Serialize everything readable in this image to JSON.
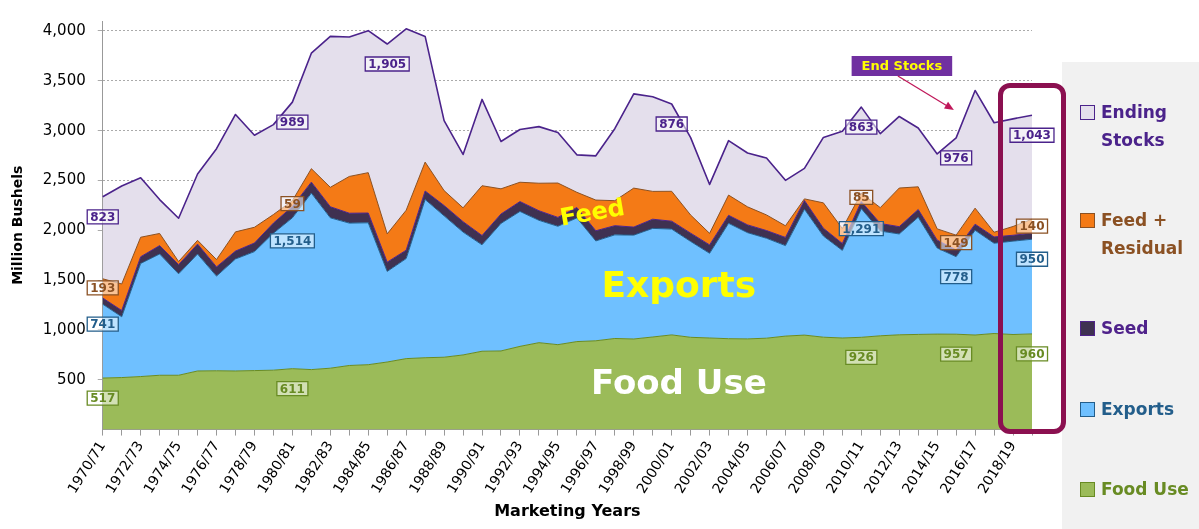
{
  "chart_data": {
    "type": "area",
    "stacked": true,
    "xlabel": "Marketing Years",
    "ylabel": "Million Bushels",
    "categories": [
      "1970/71",
      null,
      "1972/73",
      null,
      "1974/75",
      null,
      "1976/77",
      null,
      "1978/79",
      null,
      "1980/81",
      null,
      "1982/83",
      null,
      "1984/85",
      null,
      "1986/87",
      null,
      "1988/89",
      null,
      "1990/91",
      null,
      "1992/93",
      null,
      "1994/95",
      null,
      "1996/97",
      null,
      "1998/99",
      null,
      "2000/01",
      null,
      "2002/03",
      null,
      "2004/05",
      null,
      "2006/07",
      null,
      "2008/09",
      null,
      "2010/11",
      null,
      "2012/13",
      null,
      "2014/15",
      null,
      "2016/17",
      null,
      "2018/19",
      null
    ],
    "series": [
      {
        "name": "Food Use",
        "color": "#9bbb59",
        "values": [
          517,
          522,
          532,
          545,
          545,
          588,
          590,
          588,
          592,
          596,
          611,
          602,
          616,
          643,
          651,
          678,
          712,
          721,
          726,
          749,
          786,
          789,
          835,
          872,
          852,
          883,
          891,
          914,
          909,
          929,
          950,
          926,
          919,
          912,
          910,
          917,
          938,
          948,
          927,
          919,
          926,
          941,
          951,
          955,
          958,
          957,
          949,
          964,
          954,
          960
        ],
        "value_labels": [
          "517",
          null,
          null,
          null,
          null,
          null,
          null,
          null,
          null,
          null,
          "611",
          null,
          null,
          null,
          null,
          null,
          null,
          null,
          null,
          null,
          null,
          null,
          null,
          null,
          null,
          null,
          null,
          null,
          null,
          null,
          null,
          null,
          null,
          null,
          null,
          null,
          null,
          null,
          null,
          null,
          "926",
          null,
          null,
          null,
          null,
          "957",
          null,
          null,
          null,
          "960"
        ]
      },
      {
        "name": "Exports",
        "color": "#6fc0ff",
        "values": [
          741,
          610,
          1135,
          1217,
          1018,
          1173,
          950,
          1124,
          1194,
          1375,
          1514,
          1771,
          1509,
          1429,
          1424,
          909,
          1004,
          1588,
          1419,
          1233,
          1068,
          1280,
          1354,
          1228,
          1188,
          1241,
          1002,
          1040,
          1042,
          1090,
          1062,
          962,
          850,
          1158,
          1066,
          1003,
          908,
          1263,
          1015,
          879,
          1291,
          1051,
          1012,
          1176,
          864,
          778,
          1051,
          906,
          937,
          950
        ],
        "value_labels": [
          "741",
          null,
          null,
          null,
          null,
          null,
          null,
          null,
          null,
          null,
          "1,514",
          null,
          null,
          null,
          null,
          null,
          null,
          null,
          null,
          null,
          null,
          null,
          null,
          null,
          null,
          null,
          null,
          null,
          null,
          null,
          null,
          null,
          null,
          null,
          null,
          null,
          null,
          null,
          null,
          null,
          "1,291",
          null,
          null,
          null,
          null,
          "778",
          null,
          null,
          null,
          "950"
        ]
      },
      {
        "name": "Seed",
        "color": "#3f3151",
        "values": [
          62,
          63,
          67,
          84,
          92,
          100,
          92,
          79,
          86,
          101,
          113,
          110,
          111,
          99,
          98,
          93,
          84,
          85,
          103,
          104,
          93,
          94,
          99,
          96,
          89,
          104,
          102,
          92,
          81,
          92,
          79,
          83,
          84,
          80,
          78,
          77,
          82,
          88,
          78,
          69,
          71,
          76,
          73,
          77,
          79,
          67,
          61,
          63,
          59,
          61
        ]
      },
      {
        "name": "Feed + Residual",
        "color": "#f47a16",
        "values": [
          193,
          266,
          196,
          122,
          31,
          38,
          74,
          193,
          158,
          86,
          59,
          135,
          195,
          369,
          405,
          284,
          401,
          290,
          150,
          139,
          500,
          253,
          194,
          276,
          345,
          153,
          308,
          251,
          391,
          279,
          300,
          182,
          116,
          203,
          181,
          157,
          117,
          16,
          255,
          150,
          85,
          159,
          388,
          228,
          113,
          149,
          161,
          47,
          88,
          140
        ],
        "value_labels": [
          "193",
          null,
          null,
          null,
          null,
          null,
          null,
          null,
          null,
          null,
          "59",
          null,
          null,
          null,
          null,
          null,
          null,
          null,
          null,
          null,
          null,
          null,
          null,
          null,
          null,
          null,
          null,
          null,
          null,
          null,
          null,
          null,
          null,
          null,
          null,
          null,
          null,
          null,
          null,
          null,
          "85",
          null,
          null,
          null,
          null,
          "149",
          null,
          null,
          null,
          "140"
        ]
      },
      {
        "name": "Ending Stocks",
        "color": "#e4dfec",
        "values": [
          823,
          983,
          597,
          340,
          435,
          666,
          1113,
          1178,
          924,
          902,
          989,
          1159,
          1515,
          1399,
          1425,
          1905,
          1821,
          1261,
          702,
          536,
          866,
          475,
          529,
          568,
          507,
          376,
          444,
          722,
          946,
          950,
          876,
          777,
          491,
          546,
          540,
          571,
          456,
          306,
          657,
          976,
          863,
          743,
          718,
          590,
          752,
          976,
          1181,
          1099,
          1080,
          1043
        ],
        "value_labels": [
          "823",
          null,
          null,
          null,
          null,
          null,
          null,
          null,
          null,
          null,
          "989",
          null,
          null,
          null,
          null,
          "1,905",
          null,
          null,
          null,
          null,
          null,
          null,
          null,
          null,
          null,
          null,
          null,
          null,
          null,
          null,
          "876",
          null,
          null,
          null,
          null,
          null,
          null,
          null,
          null,
          null,
          "863",
          null,
          null,
          null,
          null,
          "976",
          null,
          null,
          null,
          "1,043"
        ]
      }
    ],
    "ylim": [
      0,
      4100
    ],
    "yticks": [
      500,
      {
        "value": 1000,
        "label": "1,000"
      },
      {
        "value": 1500,
        "label": "1,500"
      },
      {
        "value": 2000,
        "label": "2,000"
      },
      {
        "value": 2500,
        "label": "2,500"
      },
      {
        "value": 3000,
        "label": "3,000"
      },
      {
        "value": 3500,
        "label": "3,500"
      },
      {
        "value": 4000,
        "label": "4,000"
      }
    ],
    "grid": "y",
    "legend": "right",
    "annotations": [
      "Feed",
      "Exports",
      "Food Use",
      "End Stocks"
    ]
  }
}
